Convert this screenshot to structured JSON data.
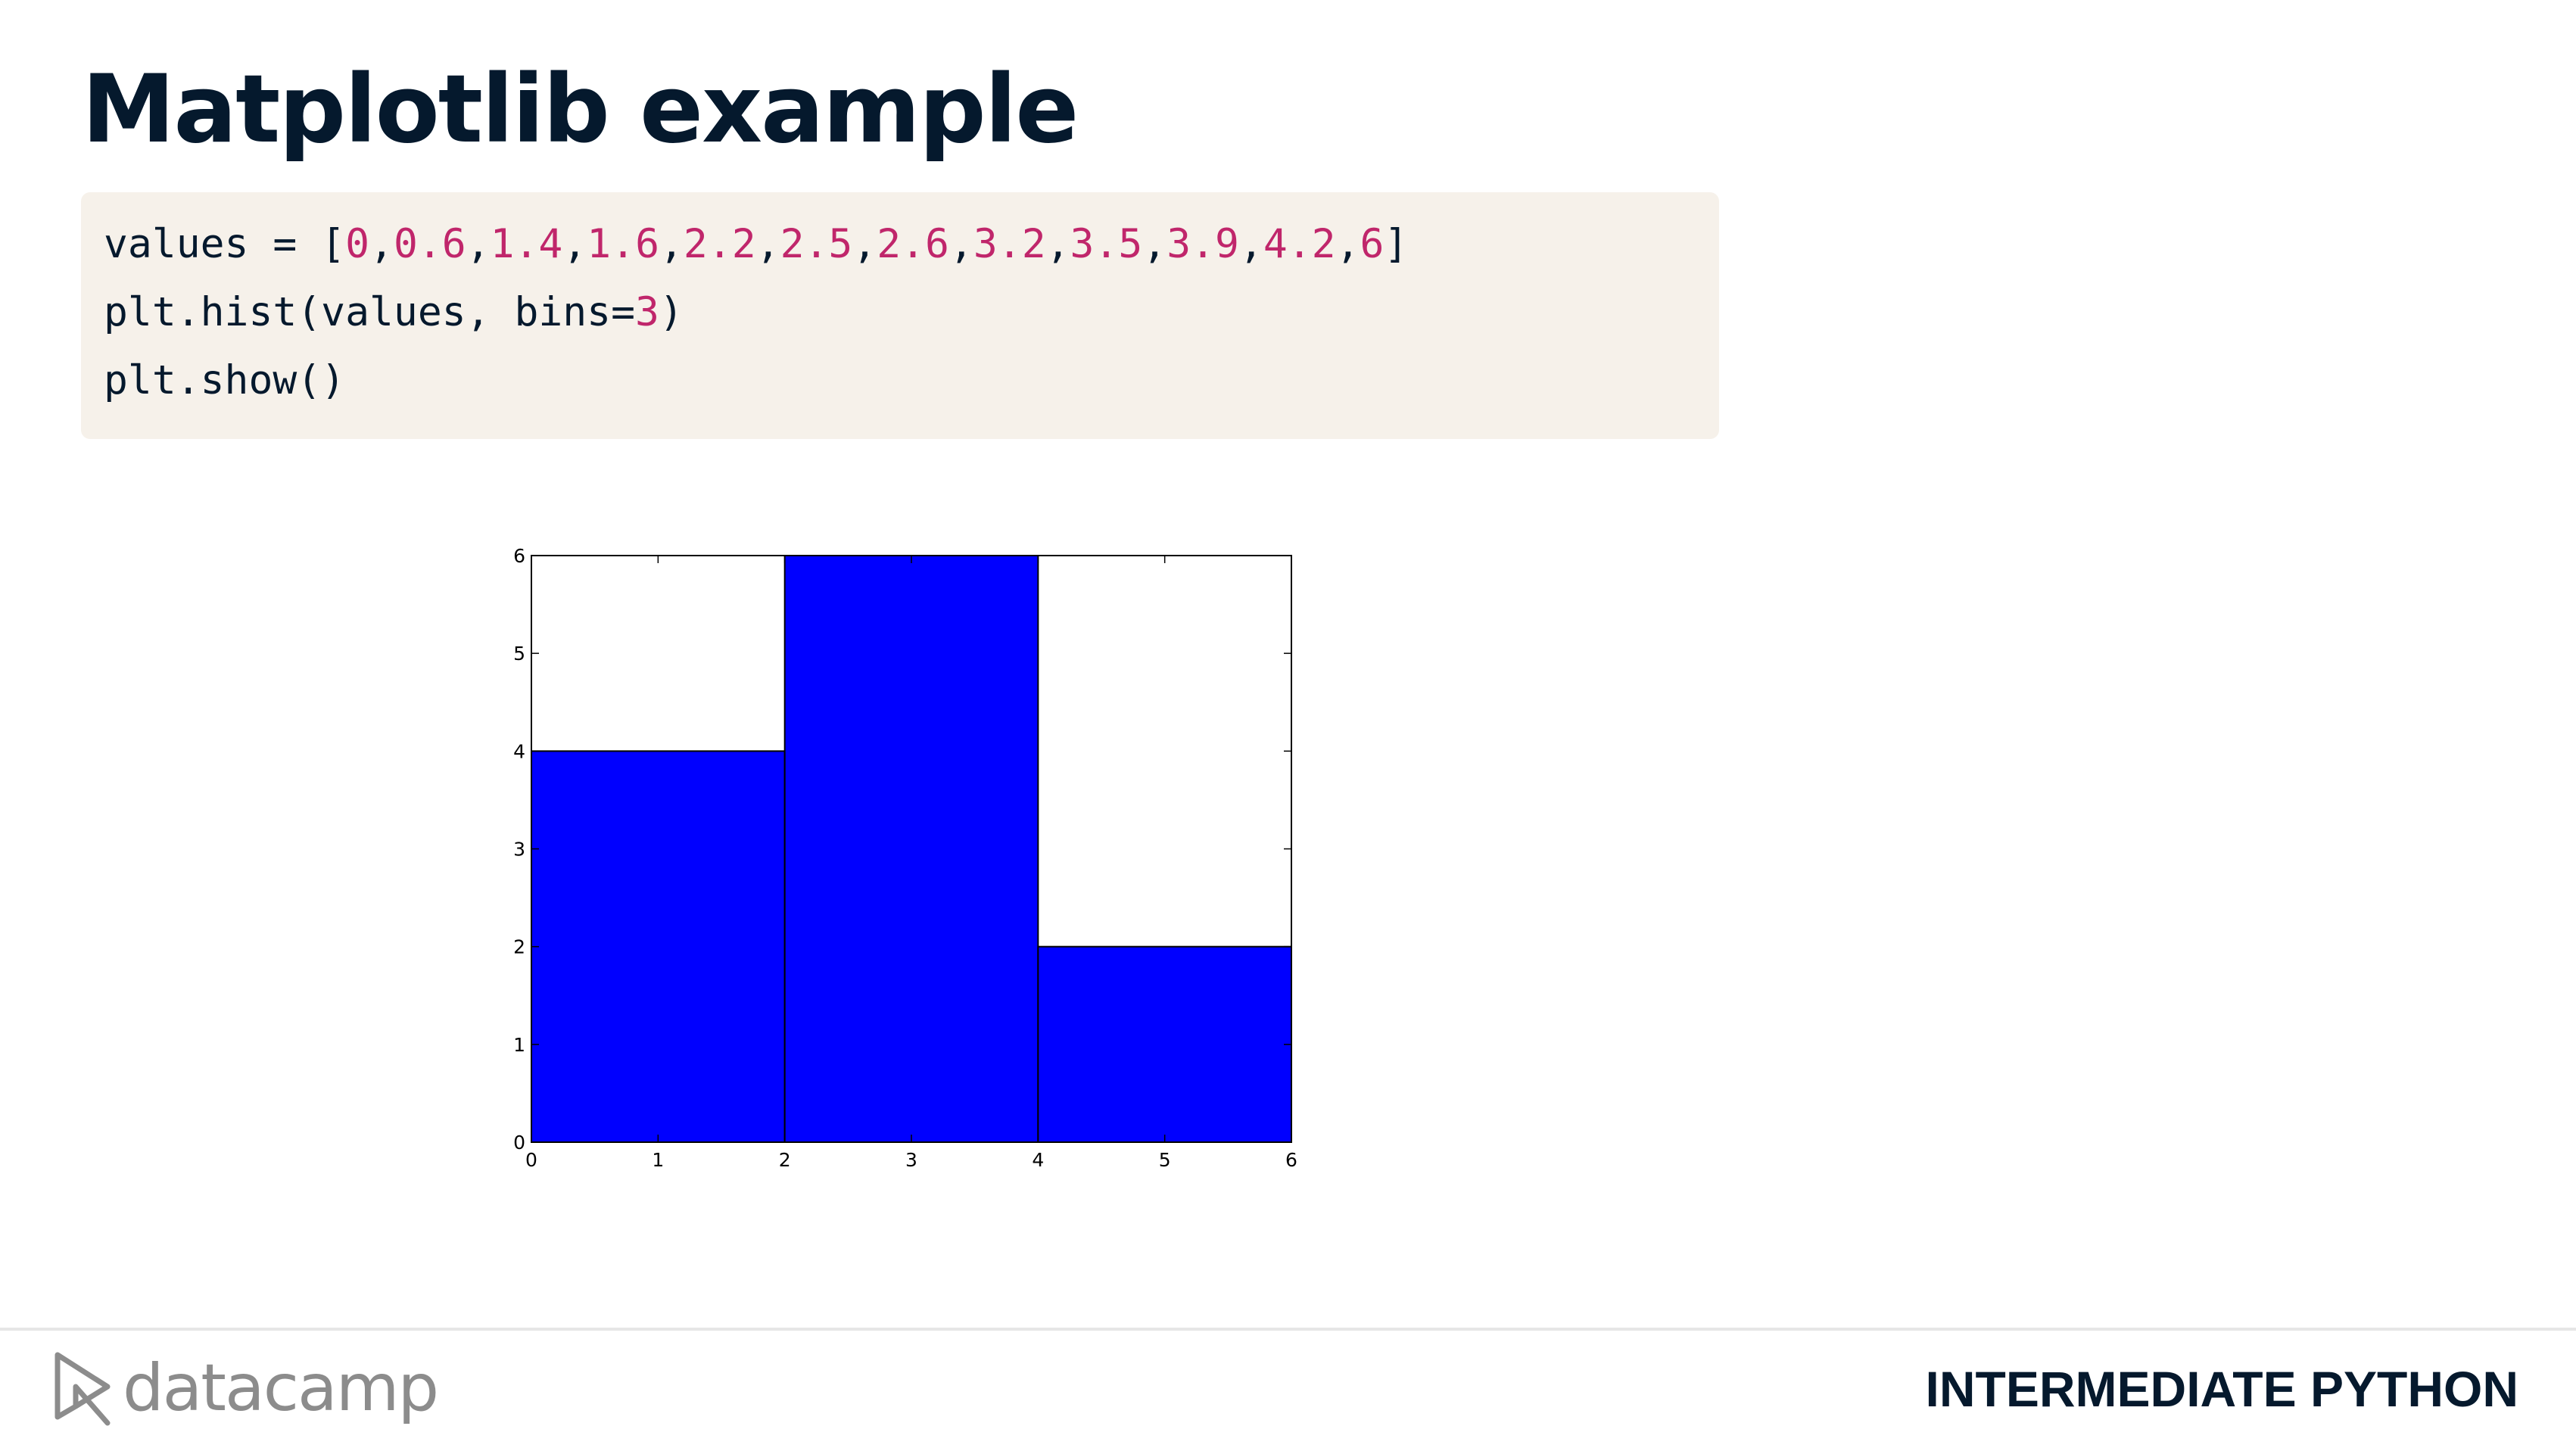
{
  "slide": {
    "title": "Matplotlib example",
    "footer_brand": "datacamp",
    "footer_course": "INTERMEDIATE PYTHON"
  },
  "code": {
    "line1": {
      "prefix": "values = [",
      "values": [
        "0",
        "0.6",
        "1.4",
        "1.6",
        "2.2",
        "2.5",
        "2.6",
        "3.2",
        "3.5",
        "3.9",
        "4.2",
        "6"
      ],
      "separator": ",",
      "suffix": "]"
    },
    "line2": {
      "prefix": "plt.hist(values, bins=",
      "arg": "3",
      "suffix": ")"
    },
    "line3": {
      "text": "plt.show()"
    }
  },
  "colors": {
    "title": "#05192d",
    "code_background": "#f6f1ea",
    "code_number": "#c0266b",
    "bar_fill": "#0000ff",
    "footer_brand": "#8c8c8c"
  },
  "icons": {
    "brand_mark": "datacamp-logo-icon"
  },
  "chart_data": {
    "type": "bar",
    "title": "",
    "xlabel": "",
    "ylabel": "",
    "bins": [
      [
        0,
        2
      ],
      [
        2,
        4
      ],
      [
        4,
        6
      ]
    ],
    "values": [
      4,
      6,
      2
    ],
    "xlim": [
      0,
      6
    ],
    "ylim": [
      0,
      6
    ],
    "xticks": [
      0,
      1,
      2,
      3,
      4,
      5,
      6
    ],
    "yticks": [
      0,
      1,
      2,
      3,
      4,
      5,
      6
    ],
    "grid": false,
    "legend": "none"
  }
}
